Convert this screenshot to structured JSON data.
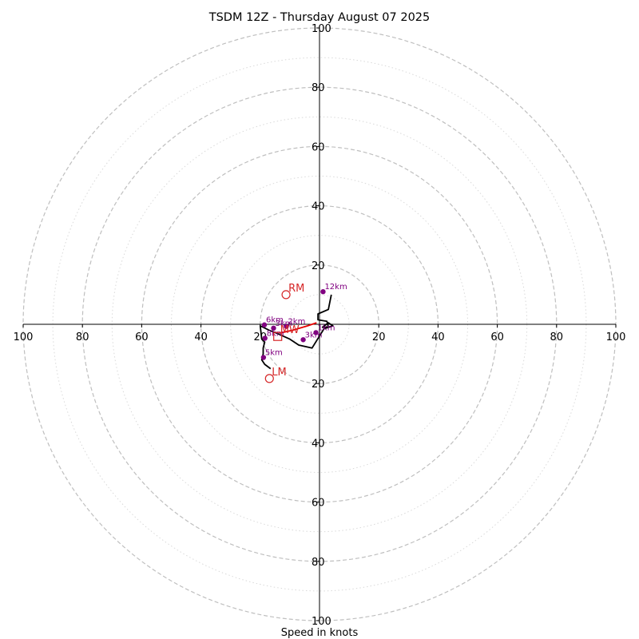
{
  "chart_data": {
    "type": "hodograph",
    "title": "TSDM 12Z - Thursday August 07 2025",
    "xlabel": "Speed in knots",
    "ylabel": "",
    "range": [
      -100,
      100
    ],
    "ring_step": 20,
    "minor_ring_step": 10,
    "tick_labels": [
      "100",
      "80",
      "60",
      "40",
      "20",
      "20",
      "40",
      "60",
      "80",
      "100"
    ],
    "colors": {
      "trace": "#000000",
      "low_level": "#e60000",
      "height_marker": "#800080",
      "motion": "#d62728",
      "ring": "#bfbfbf"
    },
    "trace": [
      [
        4.0,
        10.0
      ],
      [
        3.0,
        5.0
      ],
      [
        -0.5,
        3.5
      ],
      [
        -0.5,
        1.5
      ],
      [
        2.5,
        1.0
      ],
      [
        3.0,
        -1.0
      ],
      [
        1.0,
        -1.0
      ],
      [
        3.0,
        0.5
      ],
      [
        4.5,
        -0.5
      ],
      [
        1.5,
        -1.5
      ],
      [
        -2.5,
        -8.0
      ],
      [
        -7.0,
        -7.0
      ],
      [
        -10.0,
        -5.0
      ],
      [
        -14.5,
        -3.0
      ],
      [
        -17.0,
        -2.0
      ],
      [
        -19.0,
        -1.0
      ],
      [
        -20.0,
        -0.5
      ],
      [
        -19.5,
        -5.0
      ],
      [
        -18.5,
        -6.0
      ],
      [
        -19.0,
        -8.0
      ],
      [
        -19.0,
        -10.0
      ],
      [
        -19.5,
        -12.0
      ],
      [
        -18.5,
        -13.5
      ],
      [
        -16.5,
        -15.0
      ]
    ],
    "low_level_segment": [
      [
        -13.5,
        -3.0
      ],
      [
        -9.0,
        -2.0
      ],
      [
        -4.0,
        -0.5
      ],
      [
        -1.0,
        0.5
      ]
    ],
    "height_markers": [
      {
        "label": "12km",
        "u": 1.2,
        "v": 11.0
      },
      {
        "label": "1km",
        "u": -1.2,
        "v": -2.8
      },
      {
        "label": "3km",
        "u": -5.5,
        "v": -5.2
      },
      {
        "label": "2km",
        "u": -11.2,
        "v": -0.7
      },
      {
        "label": "3km",
        "u": -15.5,
        "v": -1.3
      },
      {
        "label": "6km",
        "u": -18.6,
        "v": -0.2
      },
      {
        "label": "8km",
        "u": -18.4,
        "v": -4.7
      },
      {
        "label": "5km",
        "u": -18.9,
        "v": -11.2
      }
    ],
    "motion_markers": [
      {
        "label": "RM",
        "u": -11.3,
        "v": 10.0,
        "shape": "circle"
      },
      {
        "label": "LM",
        "u": -16.9,
        "v": -18.3,
        "shape": "circle"
      },
      {
        "label": "MW",
        "u": -14.1,
        "v": -4.1,
        "shape": "square"
      }
    ]
  }
}
